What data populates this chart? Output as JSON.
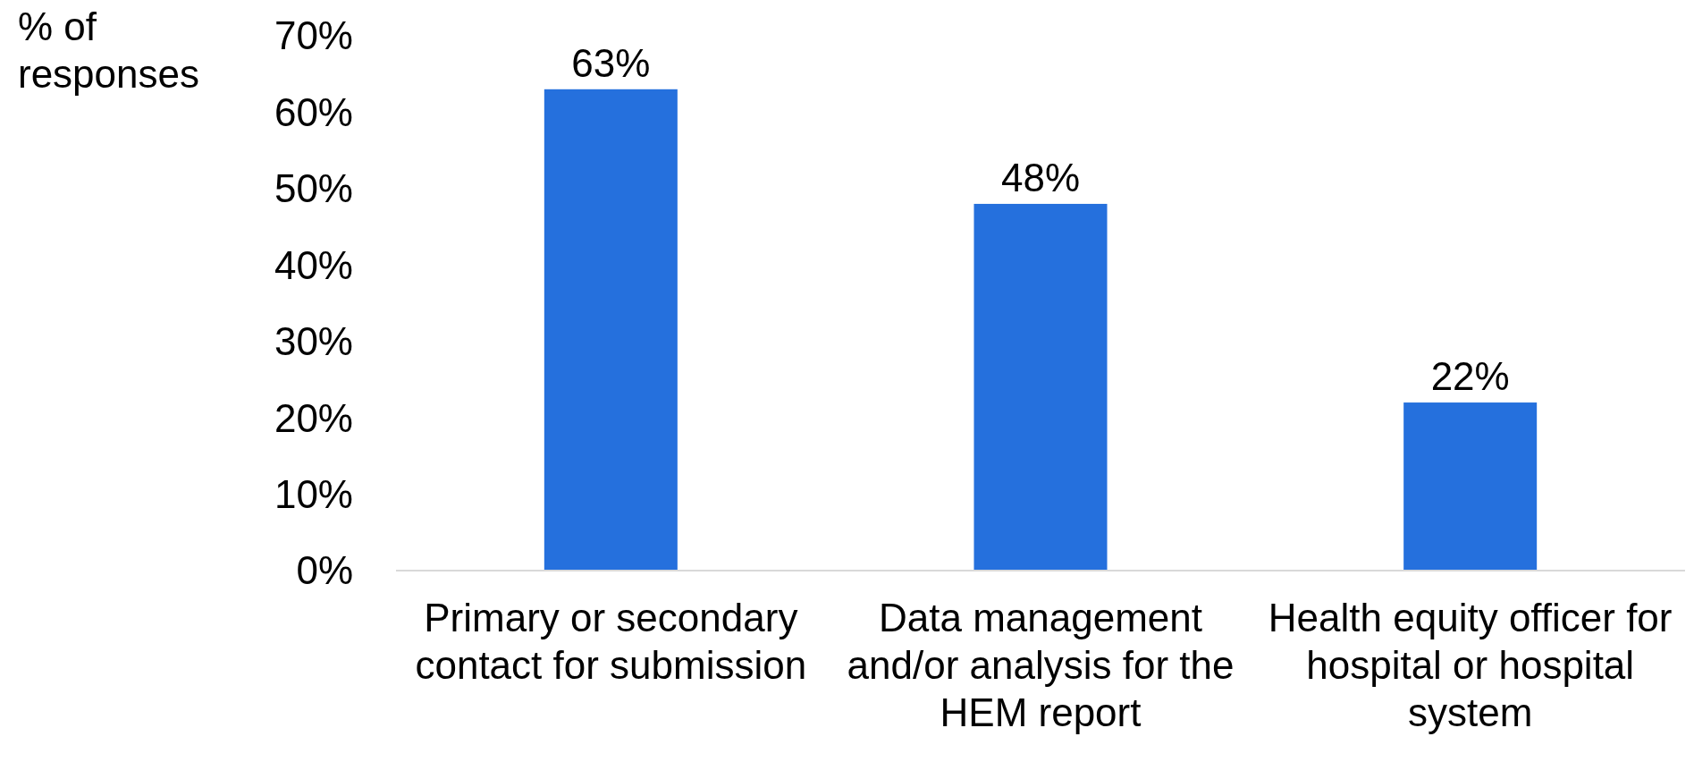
{
  "chart_data": {
    "type": "bar",
    "ylabel": "% of responses",
    "categories": [
      "Primary or secondary contact for submission",
      "Data management and/or analysis for the HEM report",
      "Health equity officer for hospital or hospital system"
    ],
    "values": [
      63,
      48,
      22
    ],
    "color": "#2570dd",
    "value_labels": [
      "63%",
      "48%",
      "22%"
    ],
    "ylim": [
      0,
      70
    ],
    "yticks": [
      {
        "value": 0,
        "label": "0%"
      },
      {
        "value": 10,
        "label": "10%"
      },
      {
        "value": 20,
        "label": "20%"
      },
      {
        "value": 30,
        "label": "30%"
      },
      {
        "value": 40,
        "label": "40%"
      },
      {
        "value": 50,
        "label": "50%"
      },
      {
        "value": 60,
        "label": "60%"
      },
      {
        "value": 70,
        "label": "70%"
      }
    ],
    "grid": false
  }
}
